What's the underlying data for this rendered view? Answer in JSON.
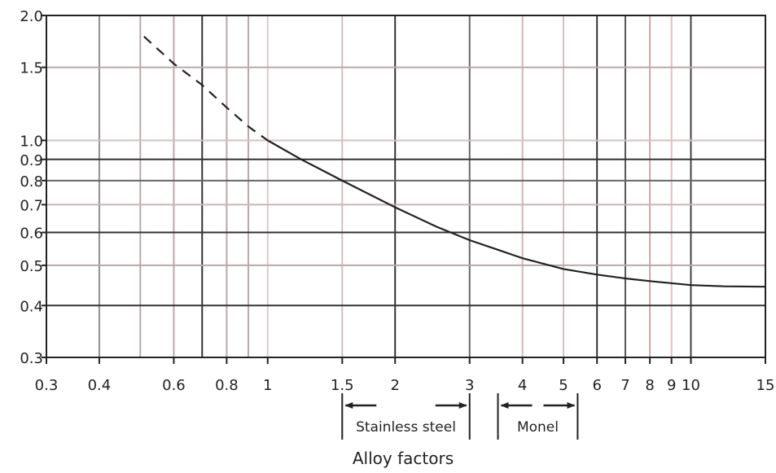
{
  "chart_data": {
    "type": "line",
    "title": "",
    "xlabel": "Alloy factors",
    "ylabel": "",
    "x_scale": "log",
    "y_scale": "log",
    "xlim": [
      0.3,
      15
    ],
    "ylim": [
      0.3,
      2.0
    ],
    "grid": true,
    "x_ticks": [
      {
        "v": 0.3,
        "label": "0.3"
      },
      {
        "v": 0.4,
        "label": "0.4"
      },
      {
        "v": 0.6,
        "label": "0.6"
      },
      {
        "v": 0.8,
        "label": "0.8"
      },
      {
        "v": 1,
        "label": "1"
      },
      {
        "v": 1.5,
        "label": "1.5"
      },
      {
        "v": 2,
        "label": "2"
      },
      {
        "v": 3,
        "label": "3"
      },
      {
        "v": 4,
        "label": "4"
      },
      {
        "v": 5,
        "label": "5"
      },
      {
        "v": 6,
        "label": "6"
      },
      {
        "v": 7,
        "label": "7"
      },
      {
        "v": 8,
        "label": "8"
      },
      {
        "v": 9,
        "label": "9"
      },
      {
        "v": 10,
        "label": "10"
      },
      {
        "v": 15,
        "label": "15"
      }
    ],
    "x_grid": [
      {
        "v": 0.4,
        "c": "#8f8f8f"
      },
      {
        "v": 0.5,
        "c": "#b9a9a9"
      },
      {
        "v": 0.6,
        "c": "#b9a9a9"
      },
      {
        "v": 0.7,
        "c": "#333333"
      },
      {
        "v": 0.8,
        "c": "#b9a9a9"
      },
      {
        "v": 0.9,
        "c": "#b9a9a9"
      },
      {
        "v": 1,
        "c": "#e0c8c8"
      },
      {
        "v": 1.5,
        "c": "#d0c0c0"
      },
      {
        "v": 2,
        "c": "#333333"
      },
      {
        "v": 3,
        "c": "#666666"
      },
      {
        "v": 4,
        "c": "#d0b8b8"
      },
      {
        "v": 5,
        "c": "#d8c0c0"
      },
      {
        "v": 6,
        "c": "#333333"
      },
      {
        "v": 7,
        "c": "#555555"
      },
      {
        "v": 8,
        "c": "#c9a9a9"
      },
      {
        "v": 9,
        "c": "#e0c0c0"
      },
      {
        "v": 10,
        "c": "#444444"
      }
    ],
    "y_ticks": [
      {
        "v": 0.3,
        "label": "0.3"
      },
      {
        "v": 0.4,
        "label": "0.4"
      },
      {
        "v": 0.5,
        "label": "0.5"
      },
      {
        "v": 0.6,
        "label": "0.6"
      },
      {
        "v": 0.7,
        "label": "0.7"
      },
      {
        "v": 0.8,
        "label": "0.8"
      },
      {
        "v": 0.9,
        "label": "0.9"
      },
      {
        "v": 1.0,
        "label": "1.0"
      },
      {
        "v": 1.5,
        "label": "1.5"
      },
      {
        "v": 2.0,
        "label": "2.0"
      }
    ],
    "y_grid": [
      {
        "v": 0.4,
        "c": "#333333"
      },
      {
        "v": 0.5,
        "c": "#b9a9a9"
      },
      {
        "v": 0.6,
        "c": "#333333"
      },
      {
        "v": 0.7,
        "c": "#c9b5b5"
      },
      {
        "v": 0.8,
        "c": "#666666"
      },
      {
        "v": 0.9,
        "c": "#333333"
      },
      {
        "v": 1.0,
        "c": "#d6c0c0"
      },
      {
        "v": 1.5,
        "c": "#bda8a8"
      }
    ],
    "series": [
      {
        "style": "dashed",
        "points": [
          [
            0.51,
            1.78
          ],
          [
            0.6,
            1.53
          ],
          [
            0.7,
            1.36
          ],
          [
            0.8,
            1.2
          ],
          [
            0.9,
            1.08
          ],
          [
            1.0,
            1.0
          ]
        ]
      },
      {
        "style": "solid",
        "points": [
          [
            1.0,
            1.0
          ],
          [
            1.2,
            0.9
          ],
          [
            1.5,
            0.8
          ],
          [
            2.0,
            0.69
          ],
          [
            2.5,
            0.62
          ],
          [
            3.0,
            0.575
          ],
          [
            3.5,
            0.545
          ],
          [
            4.0,
            0.52
          ],
          [
            5.0,
            0.49
          ],
          [
            6.0,
            0.475
          ],
          [
            7.0,
            0.465
          ],
          [
            8.0,
            0.458
          ],
          [
            10.0,
            0.448
          ],
          [
            12.0,
            0.445
          ],
          [
            15.0,
            0.444
          ]
        ]
      }
    ],
    "ranges": [
      {
        "label": "Stainless steel",
        "from": 1.5,
        "to": 3
      },
      {
        "label": "Monel",
        "from": 3.5,
        "to": 5.4
      }
    ]
  }
}
